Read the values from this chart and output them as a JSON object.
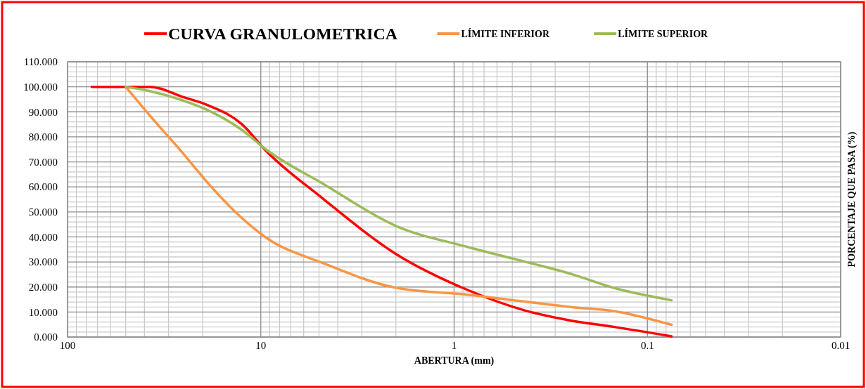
{
  "chart_data": {
    "type": "line",
    "xlabel": "ABERTURA (mm)",
    "y2label": "PORCENTAJE QUE PASA  (%)",
    "x": [
      75,
      50,
      37.5,
      25,
      19,
      12.5,
      9.5,
      4.75,
      2,
      0.85,
      0.425,
      0.25,
      0.15,
      0.075
    ],
    "series": [
      {
        "name": "CURVA GRANULOMETRICA",
        "color": "#ff0000",
        "values": [
          100,
          100,
          100,
          95.8,
          92.8,
          85,
          74.8,
          55.2,
          33.2,
          18.8,
          10.5,
          6.6,
          4.1,
          0.3
        ]
      },
      {
        "name": "LÍMITE INFERIOR",
        "color": "#f79646",
        "x": [
          50,
          37.5,
          25,
          19,
          12.5,
          9.5,
          4.75,
          2,
          0.85,
          0.425,
          0.25,
          0.15,
          0.075
        ],
        "values": [
          100,
          88.5,
          73,
          62,
          47.5,
          40,
          29.5,
          19.7,
          16.9,
          14.1,
          12,
          10.4,
          4.9
        ]
      },
      {
        "name": "LÍMITE SUPERIOR",
        "color": "#9bbb59",
        "x": [
          50,
          37.5,
          25,
          19,
          12.5,
          9.5,
          4.75,
          2,
          0.85,
          0.425,
          0.25,
          0.15,
          0.075
        ],
        "values": [
          100,
          98.3,
          94.4,
          90.8,
          82.7,
          75.2,
          61.2,
          44.4,
          36,
          30,
          25.3,
          19.7,
          14.7
        ]
      }
    ],
    "log": "x",
    "xlim": [
      100,
      0.01
    ],
    "xticks": [
      100,
      10,
      1,
      0.1,
      0.01
    ],
    "ylim": [
      0,
      110
    ],
    "yticks": [
      {
        "value": 0,
        "label": "0.000"
      },
      {
        "value": 10,
        "label": "10.000"
      },
      {
        "value": 20,
        "label": "20.000"
      },
      {
        "value": 30,
        "label": "30.000"
      },
      {
        "value": 40,
        "label": "40.000"
      },
      {
        "value": 50,
        "label": "50.000"
      },
      {
        "value": 60,
        "label": "60.000"
      },
      {
        "value": 70,
        "label": "70.000"
      },
      {
        "value": 80,
        "label": "80.000"
      },
      {
        "value": 90,
        "label": "90.000"
      },
      {
        "value": 100,
        "label": "100.000"
      },
      {
        "value": 110,
        "label": "110.000"
      }
    ],
    "grid": true,
    "legend": "top",
    "line_style": "solid",
    "marker": "none"
  }
}
